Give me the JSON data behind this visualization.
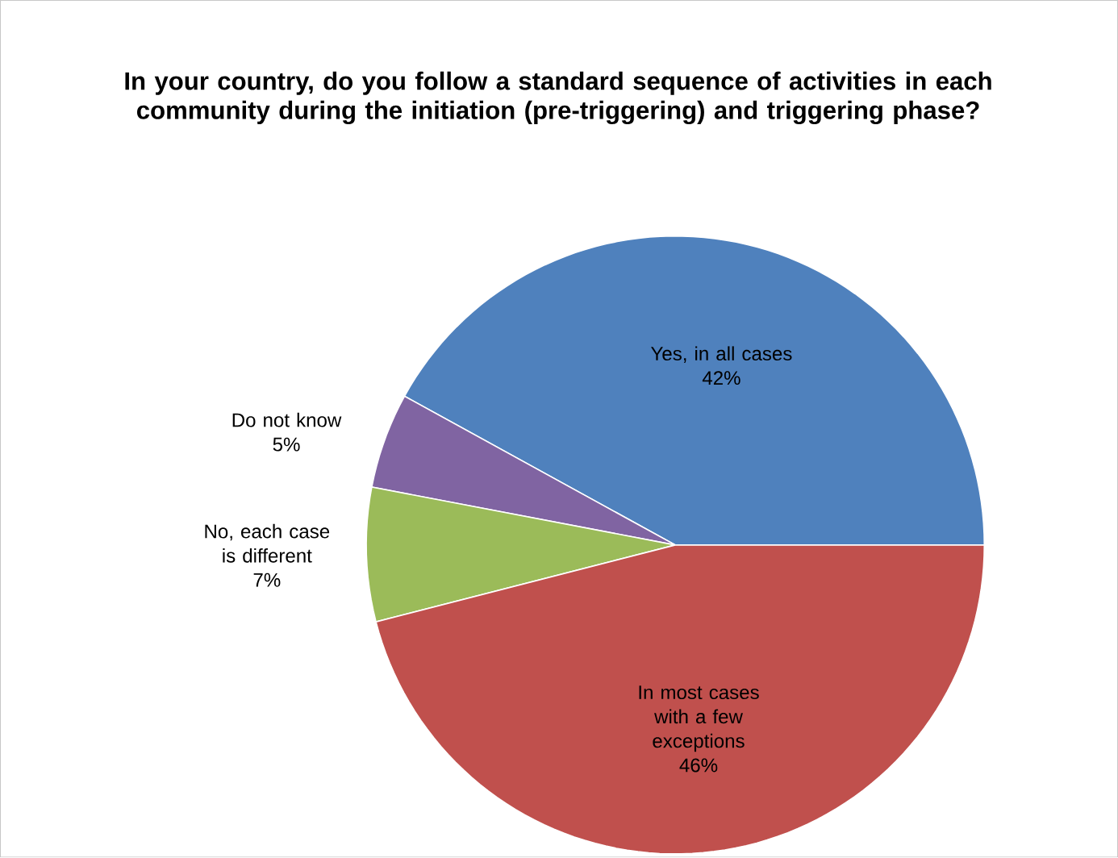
{
  "chart_data": {
    "type": "pie",
    "title": "In your country, do you follow a standard sequence of activities in each community during the initiation (pre-triggering) and triggering phase?",
    "categories": [
      "Yes, in all cases",
      "Do not know",
      "No, each case is different",
      "In most cases with a few exceptions"
    ],
    "values": [
      42,
      5,
      7,
      46
    ],
    "value_labels": [
      "42%",
      "5%",
      "7%",
      "46%"
    ],
    "colors": [
      "#4f81bd",
      "#8064a2",
      "#9bbb59",
      "#c0504d"
    ]
  }
}
